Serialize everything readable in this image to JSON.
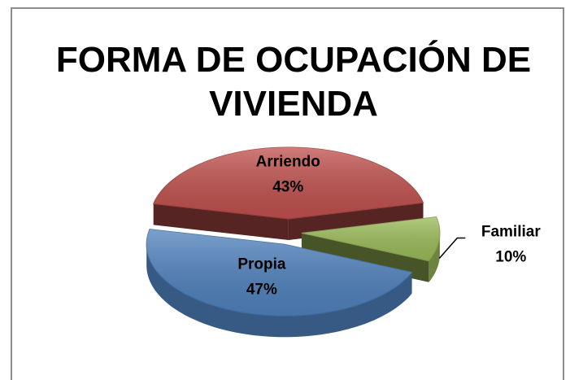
{
  "chart_data": {
    "type": "pie3d",
    "title": [
      "FORMA DE OCUPACIÓN DE",
      "VIVIENDA"
    ],
    "categories": [
      "Arriendo",
      "Propia",
      "Familiar"
    ],
    "values": [
      43,
      47,
      10
    ],
    "value_labels": [
      "43%",
      "47%",
      "10%"
    ],
    "colors": [
      "#c0504d",
      "#4f81bd",
      "#9bbb59"
    ]
  }
}
